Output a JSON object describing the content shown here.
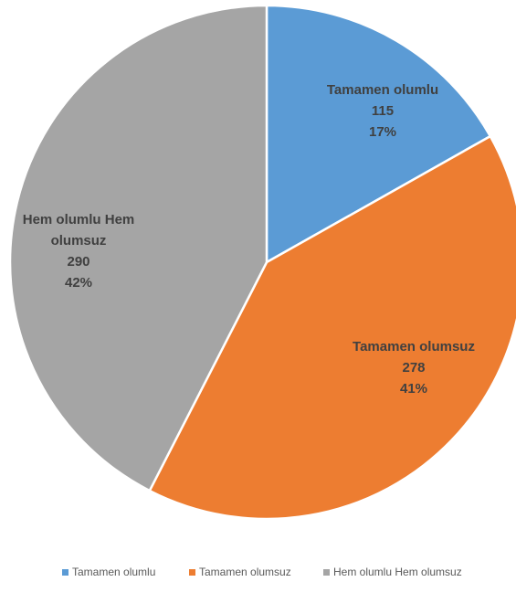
{
  "chart_data": {
    "type": "pie",
    "title": "",
    "start_angle_deg": 0,
    "direction": "clockwise",
    "legend_position": "bottom",
    "slices": [
      {
        "category": "Tamamen olumlu",
        "value": 115,
        "percent_label": "17%",
        "label_lines": [
          "Tamamen olumlu"
        ],
        "color": "#5B9BD5"
      },
      {
        "category": "Tamamen olumsuz",
        "value": 278,
        "percent_label": "41%",
        "label_lines": [
          "Tamamen olumsuz"
        ],
        "color": "#ED7D31"
      },
      {
        "category": "Hem olumlu Hem olumsuz",
        "value": 290,
        "percent_label": "42%",
        "label_lines": [
          "Hem olumlu Hem",
          "olumsuz"
        ],
        "color": "#A5A5A5"
      }
    ],
    "slice_border_color": "#FFFFFF"
  }
}
